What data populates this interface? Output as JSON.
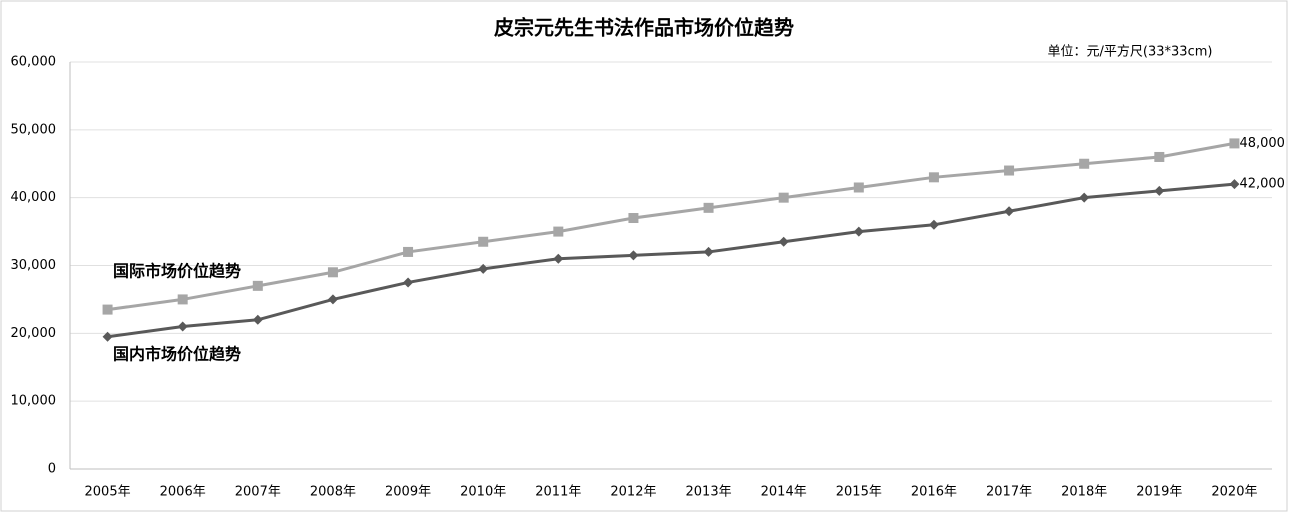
{
  "chart_data": {
    "type": "line",
    "title": "皮宗元先生书法作品市场价位趋势",
    "subtitle": "单位：元/平方尺(33*33cm)",
    "categories": [
      "2005年",
      "2006年",
      "2007年",
      "2008年",
      "2009年",
      "2010年",
      "2011年",
      "2012年",
      "2013年",
      "2014年",
      "2015年",
      "2016年",
      "2017年",
      "2018年",
      "2019年",
      "2020年"
    ],
    "series": [
      {
        "name": "国际市场价位趋势",
        "color": "#a6a6a6",
        "marker": "square",
        "values": [
          23500,
          25000,
          27000,
          29000,
          32000,
          33500,
          35000,
          37000,
          38500,
          40000,
          41500,
          43000,
          44000,
          45000,
          46000,
          48000
        ],
        "value_labels": [
          null,
          null,
          null,
          null,
          null,
          null,
          null,
          null,
          null,
          null,
          null,
          null,
          null,
          null,
          null,
          "48,000"
        ]
      },
      {
        "name": "国内市场价位趋势",
        "color": "#595959",
        "marker": "diamond",
        "values": [
          19500,
          21000,
          22000,
          25000,
          27500,
          29500,
          31000,
          31500,
          32000,
          33500,
          35000,
          36000,
          38000,
          40000,
          41000,
          42000
        ],
        "value_labels": [
          null,
          null,
          null,
          null,
          null,
          null,
          null,
          null,
          null,
          null,
          null,
          null,
          null,
          null,
          null,
          "42,000"
        ]
      }
    ],
    "ylim": [
      0,
      60000
    ],
    "yticks": [
      0,
      {
        "value": 10000,
        "label": "10,000"
      },
      {
        "value": 20000,
        "label": "20,000"
      },
      {
        "value": 30000,
        "label": "30,000"
      },
      {
        "value": 40000,
        "label": "40,000"
      },
      {
        "value": 50000,
        "label": "50,000"
      },
      {
        "value": 60000,
        "label": "60,000"
      }
    ],
    "grid": true
  }
}
